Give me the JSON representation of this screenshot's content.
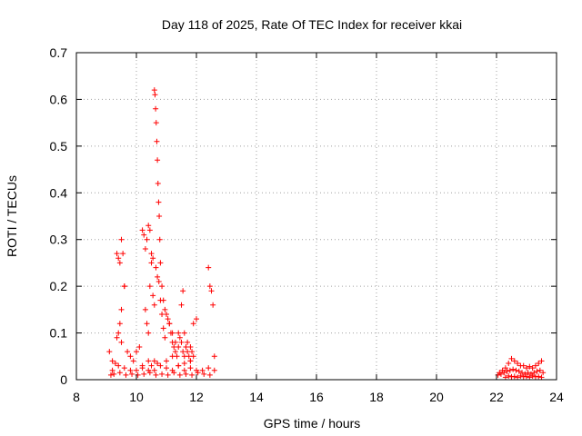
{
  "chart_data": {
    "type": "scatter",
    "title": "Day 118 of 2025, Rate Of TEC Index for receiver kkai",
    "xlabel": "GPS time / hours",
    "ylabel": "ROTI / TECUs",
    "xlim": [
      8,
      24
    ],
    "ylim": [
      0,
      0.7
    ],
    "xticks": [
      "8",
      "10",
      "12",
      "14",
      "16",
      "18",
      "20",
      "22",
      "24"
    ],
    "yticks": [
      "0",
      "0.1",
      "0.2",
      "0.3",
      "0.4",
      "0.5",
      "0.6",
      "0.7"
    ],
    "grid": true,
    "marker": "+",
    "color": "#ff0000",
    "series": [
      {
        "name": "ROTI",
        "x": [
          9.1,
          9.2,
          9.3,
          9.35,
          9.4,
          9.45,
          9.5,
          9.55,
          9.6,
          9.5,
          9.45,
          9.4,
          9.5,
          9.35,
          9.6,
          9.7,
          9.8,
          9.9,
          10.0,
          10.1,
          10.2,
          10.25,
          10.3,
          10.35,
          10.4,
          10.45,
          10.5,
          10.55,
          10.6,
          10.62,
          10.64,
          10.66,
          10.68,
          10.7,
          10.72,
          10.74,
          10.76,
          10.78,
          10.8,
          10.85,
          10.9,
          10.95,
          11.0,
          11.1,
          11.2,
          11.3,
          11.4,
          11.5,
          11.55,
          11.6,
          11.7,
          11.8,
          11.9,
          12.0,
          12.4,
          12.45,
          12.5,
          12.55,
          12.6,
          10.3,
          10.35,
          10.4,
          10.45,
          10.5,
          10.55,
          10.6,
          10.65,
          10.7,
          10.75,
          10.8,
          10.85,
          10.9,
          10.95,
          11.0,
          11.05,
          11.1,
          11.15,
          11.2,
          11.25,
          11.3,
          11.35,
          11.4,
          11.45,
          11.5,
          11.55,
          11.6,
          11.65,
          11.7,
          11.75,
          11.8,
          11.85,
          11.9,
          10.2,
          10.4,
          10.5,
          10.6,
          10.7,
          11.0,
          11.2,
          11.4,
          11.6,
          11.8,
          9.2,
          9.4,
          9.6,
          9.8,
          10.0,
          10.2,
          10.4,
          10.6,
          10.8,
          11.0,
          11.2,
          11.4,
          11.6,
          11.8,
          12.0,
          12.2,
          12.4,
          12.6,
          9.15,
          9.25,
          9.45,
          9.65,
          9.85,
          10.05,
          10.25,
          10.45,
          10.65,
          10.85,
          11.05,
          11.25,
          11.45,
          11.65,
          11.85,
          12.05,
          12.25,
          12.45,
          22.1,
          22.2,
          22.3,
          22.4,
          22.5,
          22.6,
          22.7,
          22.8,
          22.9,
          23.0,
          23.1,
          23.2,
          23.3,
          23.4,
          23.5,
          22.05,
          22.15,
          22.25,
          22.35,
          22.45,
          22.55,
          22.65,
          22.75,
          22.85,
          22.95,
          23.05,
          23.15,
          23.25,
          23.35,
          23.45,
          23.55,
          22.3,
          22.4,
          22.5,
          22.6,
          22.7,
          22.8,
          22.9,
          23.0,
          23.1,
          23.2,
          23.3,
          23.4,
          23.5
        ],
        "y": [
          0.06,
          0.04,
          0.035,
          0.27,
          0.26,
          0.25,
          0.3,
          0.27,
          0.2,
          0.15,
          0.12,
          0.1,
          0.08,
          0.09,
          0.2,
          0.06,
          0.05,
          0.04,
          0.06,
          0.07,
          0.32,
          0.31,
          0.28,
          0.3,
          0.33,
          0.32,
          0.27,
          0.26,
          0.62,
          0.61,
          0.58,
          0.55,
          0.51,
          0.47,
          0.42,
          0.38,
          0.35,
          0.3,
          0.25,
          0.2,
          0.17,
          0.15,
          0.14,
          0.12,
          0.1,
          0.08,
          0.07,
          0.16,
          0.19,
          0.1,
          0.08,
          0.07,
          0.12,
          0.13,
          0.24,
          0.2,
          0.19,
          0.16,
          0.05,
          0.15,
          0.12,
          0.1,
          0.2,
          0.25,
          0.18,
          0.16,
          0.24,
          0.22,
          0.21,
          0.17,
          0.14,
          0.11,
          0.09,
          0.14,
          0.13,
          0.12,
          0.1,
          0.08,
          0.07,
          0.06,
          0.05,
          0.1,
          0.09,
          0.08,
          0.06,
          0.05,
          0.07,
          0.06,
          0.05,
          0.04,
          0.06,
          0.05,
          0.03,
          0.04,
          0.03,
          0.04,
          0.035,
          0.04,
          0.05,
          0.03,
          0.035,
          0.04,
          0.02,
          0.03,
          0.025,
          0.02,
          0.02,
          0.025,
          0.02,
          0.02,
          0.03,
          0.025,
          0.02,
          0.03,
          0.02,
          0.025,
          0.02,
          0.02,
          0.025,
          0.02,
          0.01,
          0.012,
          0.015,
          0.01,
          0.012,
          0.01,
          0.012,
          0.015,
          0.01,
          0.012,
          0.01,
          0.015,
          0.01,
          0.012,
          0.01,
          0.015,
          0.012,
          0.01,
          0.015,
          0.02,
          0.025,
          0.035,
          0.045,
          0.04,
          0.035,
          0.03,
          0.03,
          0.025,
          0.028,
          0.025,
          0.03,
          0.035,
          0.04,
          0.01,
          0.012,
          0.015,
          0.018,
          0.02,
          0.022,
          0.02,
          0.018,
          0.015,
          0.012,
          0.015,
          0.012,
          0.015,
          0.018,
          0.02,
          0.015,
          0.005,
          0.008,
          0.006,
          0.007,
          0.005,
          0.008,
          0.006,
          0.007,
          0.005,
          0.008,
          0.006,
          0.007,
          0.005
        ]
      }
    ]
  }
}
